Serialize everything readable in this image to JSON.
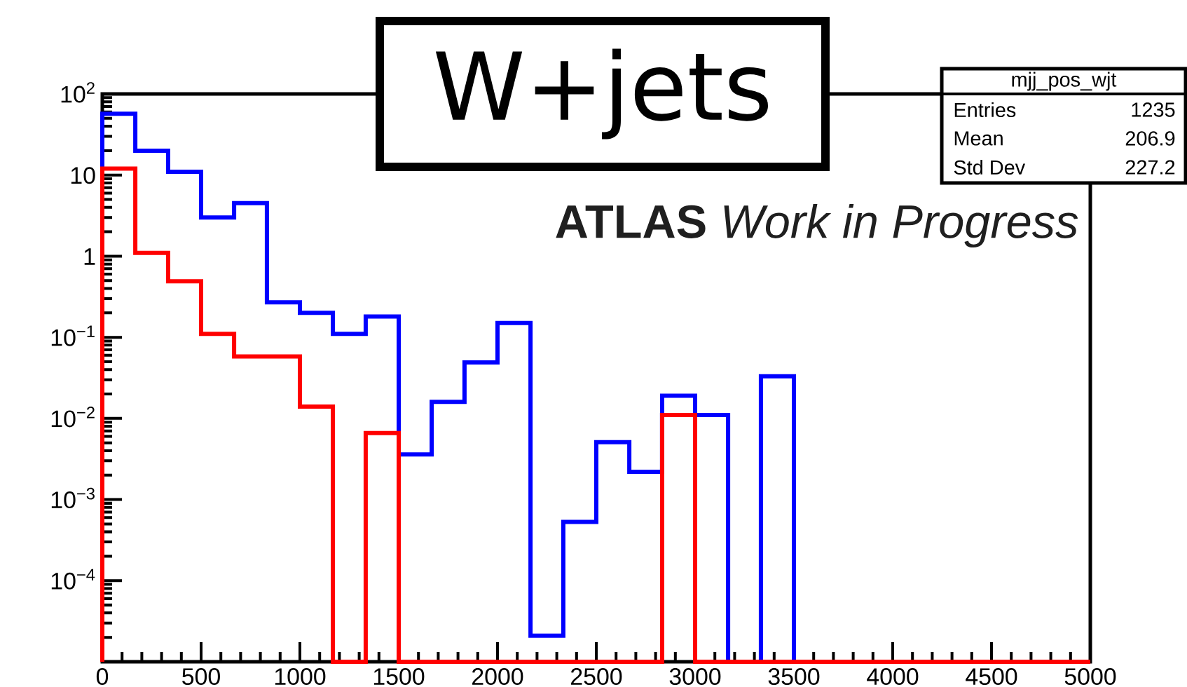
{
  "chart_data": {
    "type": "histogram",
    "title": "W+jets",
    "bins": [
      0,
      167,
      333,
      500,
      667,
      833,
      1000,
      1167,
      1333,
      1500,
      1667,
      1833,
      2000,
      2167,
      2333,
      2500,
      2667,
      2833,
      3000,
      3167,
      3333,
      3500,
      3667,
      3833,
      4000,
      4167,
      4333,
      4500,
      4667,
      4833,
      5000
    ],
    "series": [
      {
        "color": "#0000ff",
        "values": [
          57,
          20,
          11,
          3.0,
          4.5,
          0.27,
          0.2,
          0.11,
          0.18,
          0.0036,
          0.016,
          0.049,
          0.15,
          2.1e-05,
          0.00053,
          0.0051,
          0.0022,
          0.019,
          0.011,
          null,
          0.033,
          null,
          null,
          null,
          null,
          null,
          null,
          null,
          null,
          null
        ]
      },
      {
        "color": "#ff0000",
        "values": [
          12,
          1.1,
          0.49,
          0.11,
          0.058,
          0.058,
          0.014,
          null,
          0.0066,
          null,
          null,
          null,
          null,
          null,
          null,
          null,
          null,
          0.011,
          null,
          null,
          null,
          null,
          null,
          null,
          null,
          null,
          null,
          null,
          null,
          null
        ]
      }
    ],
    "log": "y",
    "xlim": [
      0,
      5000
    ],
    "xticks": [
      0,
      500,
      1000,
      1500,
      2000,
      2500,
      3000,
      3500,
      4000,
      4500,
      5000
    ],
    "ylim": [
      1e-05,
      100
    ],
    "yticks": [
      {
        "value": 0.0001,
        "label": "10$^{−4}$"
      },
      {
        "value": 0.001,
        "label": "10$^{−3}$"
      },
      {
        "value": 0.01,
        "label": "10$^{−2}$"
      },
      {
        "value": 0.1,
        "label": "10$^{−1}$"
      },
      1,
      10,
      {
        "value": 100,
        "label": "10$^{2}$"
      }
    ],
    "annotations": [
      "**ATLAS** *Work in Progress*",
      "mjj_pos_wjt",
      "Entries",
      "1235",
      "Mean",
      "206.9",
      "Std Dev",
      "227.2"
    ]
  }
}
